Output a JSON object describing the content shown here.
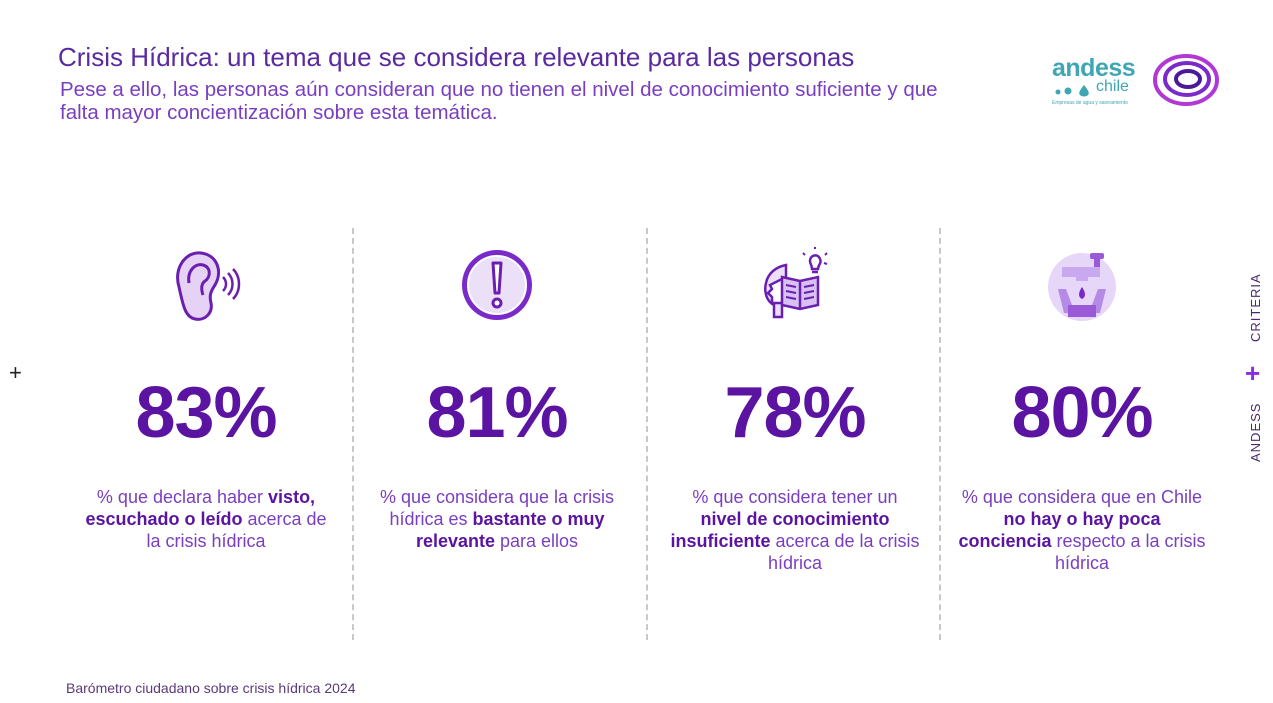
{
  "header": {
    "title": "Crisis Hídrica: un tema que se considera relevante para las personas",
    "subtitle": "Pese a ello, las personas aún consideran que no tienen el nivel de conocimiento suficiente y que falta mayor concientización sobre esta temática."
  },
  "logos": {
    "andess_word": "andess",
    "andess_chile": "chile",
    "andess_tagline": "Empresas de agua y saneamiento"
  },
  "side_label": {
    "first": "CRITERIA",
    "second": "ANDESS"
  },
  "stats": [
    {
      "icon": "ear-icon",
      "value": "83%",
      "desc_pre": "% que declara haber ",
      "desc_bold": "visto, escuchado o leído",
      "desc_post": " acerca de la crisis hídrica"
    },
    {
      "icon": "exclamation-icon",
      "value": "81%",
      "desc_pre": "% que considera que la crisis hídrica es ",
      "desc_bold": "bastante o muy relevante",
      "desc_post": " para ellos"
    },
    {
      "icon": "head-book-idea-icon",
      "value": "78%",
      "desc_pre": "% que considera tener un ",
      "desc_bold": "nivel de conocimiento insuficiente",
      "desc_post": " acerca de la crisis hídrica"
    },
    {
      "icon": "faucet-hands-icon",
      "value": "80%",
      "desc_pre": "% que considera que en Chile ",
      "desc_bold": "no hay o hay poca conciencia",
      "desc_post": " respecto a la crisis hídrica"
    }
  ],
  "footer": {
    "source": "Barómetro ciudadano sobre crisis hídrica 2024"
  },
  "colors": {
    "primary": "#5b14a2",
    "accent": "#7a3fc0",
    "teal": "#3fa6b4"
  }
}
